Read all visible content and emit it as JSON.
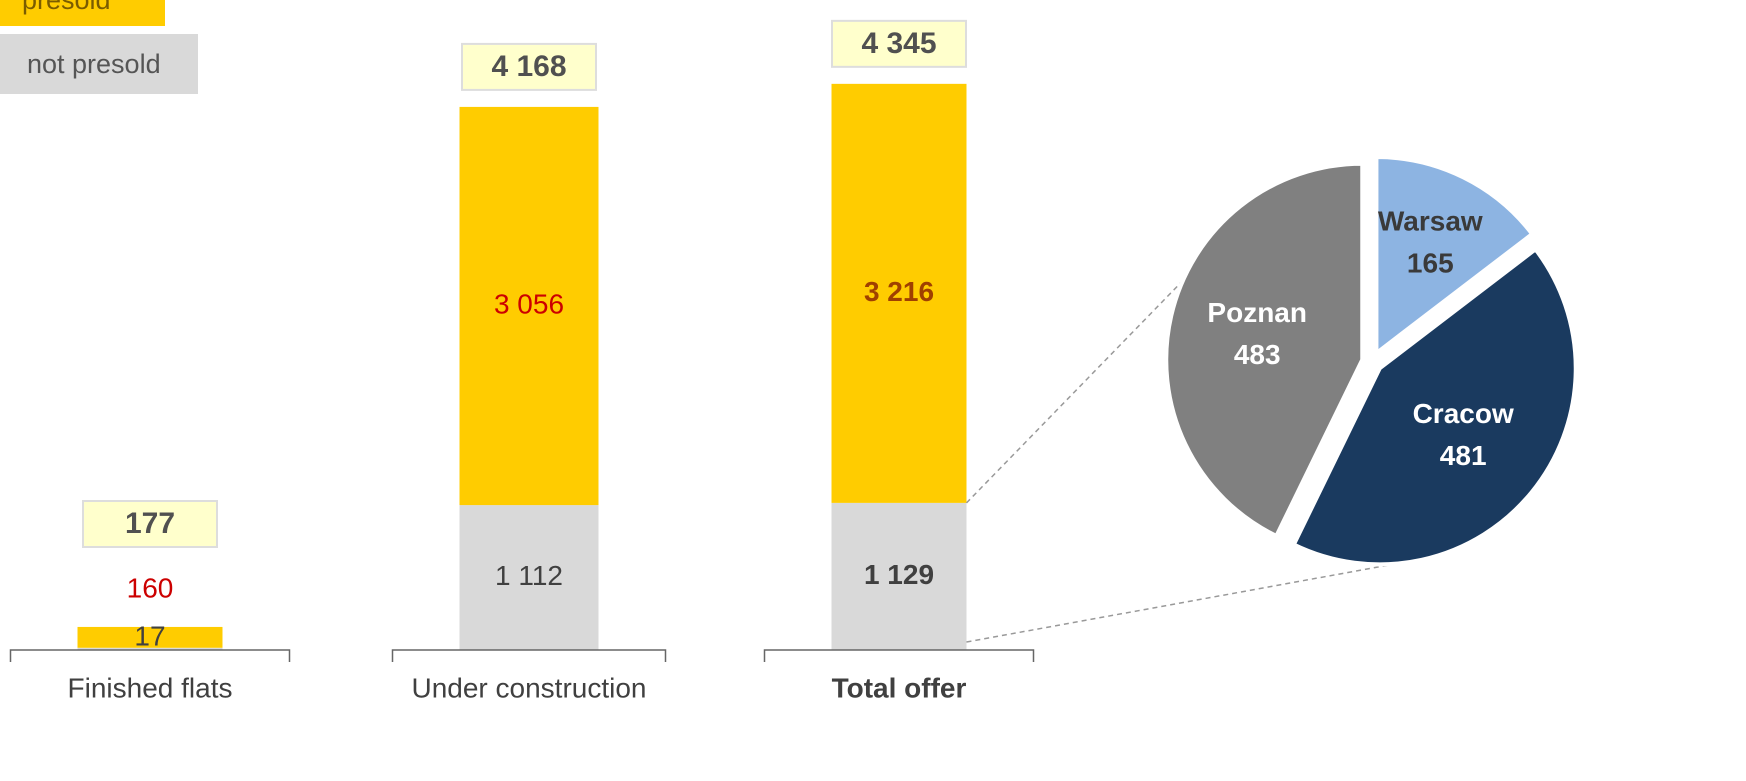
{
  "chart_data": [
    {
      "type": "stacked_bar",
      "categories": [
        "Finished flats",
        "Under construction",
        "Total offer"
      ],
      "series": [
        {
          "name": "not presold",
          "color": "#d9d9d9",
          "values": [
            17,
            1112,
            1129
          ],
          "value_labels": [
            "17",
            "1 112",
            "1 129"
          ]
        },
        {
          "name": "presold",
          "color": "#ffcc00",
          "values": [
            160,
            3056,
            3216
          ],
          "value_labels": [
            "160",
            "3 056",
            "3 216"
          ]
        }
      ],
      "totals": [
        177,
        4168,
        4345
      ],
      "total_labels": [
        "177",
        "4 168",
        "4 345"
      ]
    },
    {
      "type": "pie",
      "categories": [
        "Warsaw",
        "Cracow",
        "Poznan"
      ],
      "values": [
        165,
        481,
        483
      ],
      "colors": [
        "#8db4e2",
        "#1a3a5f",
        "#808080"
      ]
    }
  ]
}
